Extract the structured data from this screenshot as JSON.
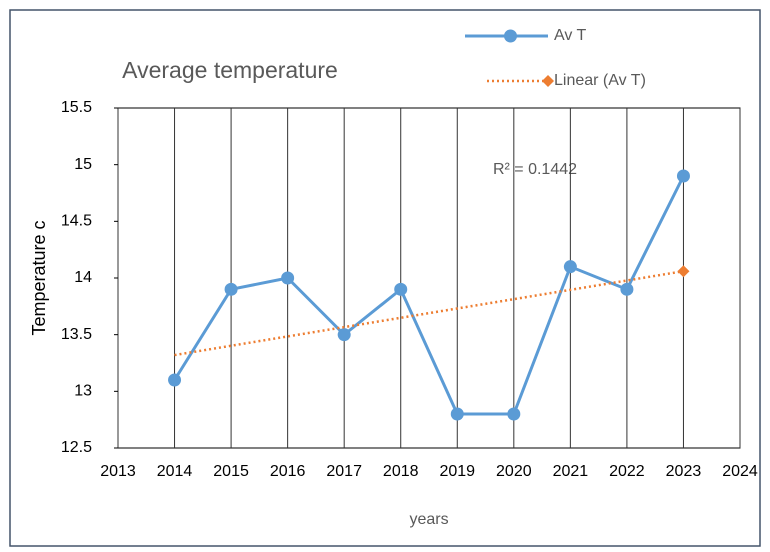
{
  "chart_data": {
    "type": "line",
    "title": "Average temperature",
    "x_label": "years",
    "y_label": "Temperature c",
    "annotation": "R² = 0.1442",
    "xlim": [
      2013,
      2024
    ],
    "xticks": [
      2013,
      2014,
      2015,
      2016,
      2017,
      2018,
      2019,
      2020,
      2021,
      2022,
      2023,
      2024
    ],
    "ylim": [
      12.5,
      15.5
    ],
    "yticks": [
      12.5,
      13,
      13.5,
      14,
      14.5,
      15,
      15.5
    ],
    "grid": "x",
    "legend": "top-right",
    "series": [
      {
        "name": "Av T",
        "color": "#5b9bd5",
        "marker": "circle",
        "x": [
          2014,
          2015,
          2016,
          2017,
          2018,
          2019,
          2020,
          2021,
          2022,
          2023
        ],
        "values": [
          13.1,
          13.9,
          14.0,
          13.5,
          13.9,
          12.8,
          12.8,
          14.1,
          13.9,
          14.9
        ]
      },
      {
        "name": "Linear (Av T)",
        "color": "#ed7d31",
        "marker": "diamond",
        "dash": "dotted",
        "x": [
          2014,
          2023
        ],
        "values": [
          13.32,
          14.06
        ]
      }
    ]
  }
}
